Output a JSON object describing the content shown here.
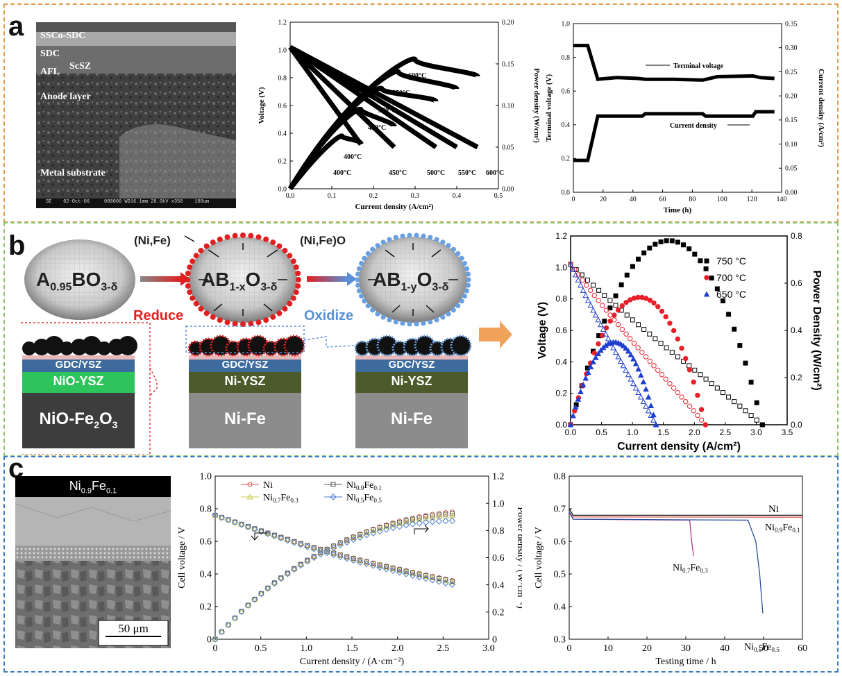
{
  "panels": {
    "a": "a",
    "b": "b",
    "c": "c"
  },
  "colors": {
    "panel_a_border": "#e39a4a",
    "panel_b_border": "#8cc26a",
    "panel_c_border": "#3a7cc0"
  },
  "sem_a": {
    "labels": [
      "SSCo-SDC",
      "SDC",
      "AFL",
      "ScSZ",
      "Anode layer",
      "Metal substrate"
    ],
    "footer": "SE    02-Oct-06     000000 WD16.1mm 20.0kV x350    100um"
  },
  "sem_c": {
    "title_base": "Ni",
    "title_sub1": "0.9",
    "title_mid": "Fe",
    "title_sub2": "0.1",
    "scale": "50 μm"
  },
  "schematic_b": {
    "oxide_left": {
      "base": "A",
      "sub1": "0.95",
      "mid": "BO",
      "sub2": "3-δ"
    },
    "particle_mid": {
      "base": "AB",
      "sub1": "1-x",
      "mid": "O",
      "sub2": "3-δ"
    },
    "particle_right": {
      "base": "AB",
      "sub1": "1-y",
      "mid": "O",
      "sub2": "3-δ"
    },
    "exsolved_label": "(Ni,Fe)",
    "oxidized_label": "(Ni,Fe)O",
    "reduce": "Reduce",
    "oxidize": "Oxidize",
    "layers": {
      "electrolyte": "GDC/YSZ",
      "anode_left": "NiO-YSZ",
      "anode_right": "Ni-YSZ",
      "support_mid": "Ni-Fe",
      "support_left": {
        "base": "NiO-Fe",
        "sub": "2",
        "end": "O",
        "sub2": "3"
      }
    }
  },
  "chart_data": [
    {
      "id": "a-iv",
      "type": "line",
      "title": "",
      "xlabel": "Current density (A/cm²)",
      "ylabel": "Voltage (V)",
      "y2label": "Power density (W/cm²)",
      "xlim": [
        0,
        0.5
      ],
      "ylim": [
        0,
        1.2
      ],
      "y2lim": [
        0,
        0.2
      ],
      "xticks": [
        "0.0",
        "0.1",
        "0.2",
        "0.3",
        "0.4",
        "0.5"
      ],
      "yticks": [
        "0.0",
        "0.2",
        "0.4",
        "0.6",
        "0.8",
        "1.0",
        "1.2"
      ],
      "y2ticks": [
        "0.00",
        "0.05",
        "0.10",
        "0.15",
        "0.20"
      ],
      "series": [
        {
          "name": "400°C",
          "voltage": [
            [
              0,
              1.02
            ],
            [
              0.17,
              0.32
            ]
          ],
          "power": [
            [
              0,
              0
            ],
            [
              0.085,
              0.055
            ],
            [
              0.125,
              0.063
            ],
            [
              0.17,
              0.054
            ]
          ]
        },
        {
          "name": "450°C",
          "voltage": [
            [
              0,
              1.02
            ],
            [
              0.25,
              0.3
            ]
          ],
          "power": [
            [
              0,
              0
            ],
            [
              0.1,
              0.08
            ],
            [
              0.17,
              0.095
            ],
            [
              0.25,
              0.075
            ]
          ]
        },
        {
          "name": "500°C",
          "voltage": [
            [
              0,
              1.02
            ],
            [
              0.35,
              0.3
            ]
          ],
          "power": [
            [
              0,
              0
            ],
            [
              0.12,
              0.1
            ],
            [
              0.22,
              0.12
            ],
            [
              0.35,
              0.105
            ]
          ]
        },
        {
          "name": "550°C",
          "voltage": [
            [
              0,
              1.02
            ],
            [
              0.4,
              0.3
            ]
          ],
          "power": [
            [
              0,
              0
            ],
            [
              0.14,
              0.115
            ],
            [
              0.26,
              0.14
            ],
            [
              0.4,
              0.12
            ]
          ]
        },
        {
          "name": "600°C",
          "voltage": [
            [
              0,
              1.02
            ],
            [
              0.45,
              0.3
            ]
          ],
          "power": [
            [
              0,
              0
            ],
            [
              0.15,
              0.125
            ],
            [
              0.3,
              0.155
            ],
            [
              0.45,
              0.135
            ]
          ]
        }
      ],
      "annotations": [
        "400°C",
        "450°C",
        "500°C",
        "550°C",
        "600°C",
        "400°C",
        "450°C",
        "500°C",
        "550°C",
        "600°C"
      ]
    },
    {
      "id": "a-durability",
      "type": "line",
      "xlabel": "Time (h)",
      "ylabel": "Terminal voltage  (V)",
      "y2label": "Current density (A/cm²)",
      "xlim": [
        0,
        145
      ],
      "ylim": [
        0,
        1.0
      ],
      "y2lim": [
        0,
        0.35
      ],
      "xticks": [
        "0",
        "20",
        "40",
        "60",
        "80",
        "100",
        "120",
        "140"
      ],
      "yticks": [
        "0.0",
        "0.2",
        "0.4",
        "0.6",
        "0.8",
        "1.0"
      ],
      "y2ticks": [
        "0.00",
        "0.05",
        "0.10",
        "0.15",
        "0.20",
        "0.25",
        "0.30",
        "0.35"
      ],
      "series": [
        {
          "name": "Terminal voltage",
          "points": [
            [
              0,
              0.87
            ],
            [
              10,
              0.87
            ],
            [
              17,
              0.67
            ],
            [
              30,
              0.68
            ],
            [
              45,
              0.675
            ],
            [
              50,
              0.67
            ],
            [
              70,
              0.67
            ],
            [
              90,
              0.665
            ],
            [
              100,
              0.685
            ],
            [
              125,
              0.69
            ],
            [
              130,
              0.68
            ],
            [
              140,
              0.675
            ]
          ]
        },
        {
          "name": "Current density",
          "points": [
            [
              0,
              0.066
            ],
            [
              10,
              0.066
            ],
            [
              17,
              0.158
            ],
            [
              48,
              0.158
            ],
            [
              50,
              0.163
            ],
            [
              90,
              0.163
            ],
            [
              92,
              0.158
            ],
            [
              125,
              0.158
            ],
            [
              127,
              0.167
            ],
            [
              140,
              0.167
            ]
          ]
        }
      ],
      "annotations": [
        "Terminal voltage",
        "Current density"
      ]
    },
    {
      "id": "b-iv",
      "type": "scatter",
      "xlabel": "Current density (A/cm²)",
      "ylabel": "Voltage (V)",
      "y2label": "Power Density (W/cm²)",
      "xlim": [
        0,
        3.5
      ],
      "ylim": [
        0,
        1.2
      ],
      "y2lim": [
        0,
        0.8
      ],
      "xticks": [
        "0.0",
        "0.5",
        "1.0",
        "1.5",
        "2.0",
        "2.5",
        "3.0",
        "3.5"
      ],
      "yticks": [
        "0.0",
        "0.2",
        "0.4",
        "0.6",
        "0.8",
        "1.0",
        "1.2"
      ],
      "y2ticks": [
        "0.0",
        "0.2",
        "0.4",
        "0.6",
        "0.8"
      ],
      "legend": "top-right",
      "series": [
        {
          "name": "750 °C",
          "color": "#000000",
          "marker": "square",
          "vmax": 3.1,
          "ocv": 1.02,
          "pmax": 0.78
        },
        {
          "name": "700 °C",
          "color": "#e8202a",
          "marker": "circle",
          "vmax": 2.18,
          "ocv": 1.02,
          "pmax": 0.54
        },
        {
          "name": "650 °C",
          "color": "#1f3fcf",
          "marker": "triangle",
          "vmax": 1.38,
          "ocv": 1.02,
          "pmax": 0.35
        }
      ]
    },
    {
      "id": "c-iv",
      "type": "line",
      "xlabel": "Current density / (A·cm⁻²)",
      "ylabel": "Cell voltage / V",
      "y2label": "Power density / (W·cm⁻²)",
      "xlim": [
        0,
        3.0
      ],
      "ylim": [
        0,
        1.0
      ],
      "y2lim": [
        0,
        1.2
      ],
      "xticks": [
        "0",
        "0.5",
        "1.0",
        "1.5",
        "2.0",
        "2.5",
        "3.0"
      ],
      "yticks": [
        "0",
        "0.2",
        "0.4",
        "0.6",
        "0.8",
        "1.0"
      ],
      "y2ticks": [
        "0",
        "0.2",
        "0.4",
        "0.6",
        "0.8",
        "1.0",
        "1.2"
      ],
      "legend": "top",
      "series": [
        {
          "name": "Ni",
          "color": "#d9534f",
          "marker": "circle",
          "v": [
            0.76,
            0.36
          ],
          "pmax": 0.92
        },
        {
          "name": "Ni0.9Fe0.1",
          "color": "#555555",
          "marker": "square",
          "v": [
            0.76,
            0.355
          ],
          "pmax": 0.92
        },
        {
          "name": "Ni0.7Fe0.3",
          "color": "#c8c84a",
          "marker": "triangle",
          "v": [
            0.76,
            0.35
          ],
          "pmax": 0.9
        },
        {
          "name": "Ni0.5Fe0.5",
          "color": "#4a7ad0",
          "marker": "diamond",
          "v": [
            0.76,
            0.335
          ],
          "pmax": 0.88
        }
      ]
    },
    {
      "id": "c-stability",
      "type": "line",
      "xlabel": "Testing time / h",
      "ylabel": "Cell voltage / V",
      "xlim": [
        0,
        60
      ],
      "ylim": [
        0.3,
        0.8
      ],
      "xticks": [
        "0",
        "10",
        "20",
        "30",
        "40",
        "50",
        "60"
      ],
      "yticks": [
        "0.3",
        "0.4",
        "0.5",
        "0.6",
        "0.7",
        "0.8"
      ],
      "series": [
        {
          "name": "Ni",
          "color": "#111111",
          "points": [
            [
              0,
              0.7
            ],
            [
              1,
              0.68
            ],
            [
              60,
              0.68
            ]
          ]
        },
        {
          "name": "Ni0.9Fe0.1",
          "color": "#d9534f",
          "points": [
            [
              0,
              0.69
            ],
            [
              1,
              0.675
            ],
            [
              60,
              0.674
            ]
          ]
        },
        {
          "name": "Ni0.7Fe0.3",
          "color": "#b03a8a",
          "points": [
            [
              0,
              0.69
            ],
            [
              1,
              0.668
            ],
            [
              31,
              0.665
            ],
            [
              31.5,
              0.6
            ],
            [
              32,
              0.555
            ]
          ]
        },
        {
          "name": "Ni0.5Fe0.5",
          "color": "#2a4fa0",
          "points": [
            [
              0,
              0.69
            ],
            [
              1,
              0.668
            ],
            [
              46,
              0.665
            ],
            [
              48,
              0.6
            ],
            [
              49,
              0.5
            ],
            [
              49.8,
              0.38
            ]
          ]
        }
      ]
    }
  ]
}
